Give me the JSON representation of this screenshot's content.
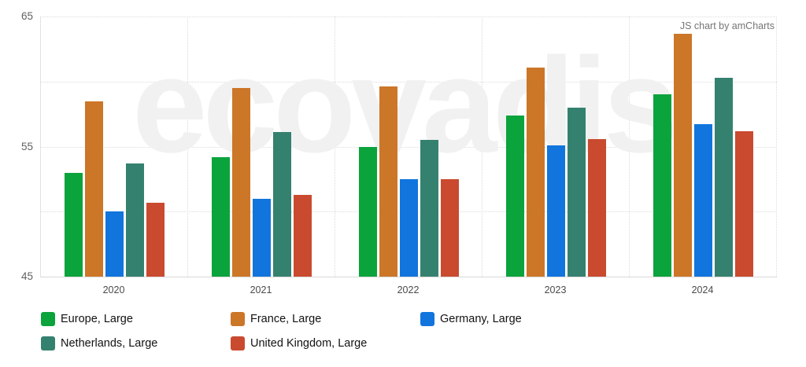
{
  "watermark": "ecovadis",
  "attribution": "JS chart by amCharts",
  "chart_data": {
    "type": "bar",
    "title": "",
    "xlabel": "",
    "ylabel": "",
    "categories": [
      "2020",
      "2021",
      "2022",
      "2023",
      "2024"
    ],
    "series": [
      {
        "name": "Europe, Large",
        "color": "#0ba33c",
        "values": [
          53.0,
          54.2,
          55.0,
          57.4,
          59.0
        ]
      },
      {
        "name": "France, Large",
        "color": "#cc7628",
        "values": [
          58.5,
          59.5,
          59.6,
          61.1,
          63.7
        ]
      },
      {
        "name": "Germany, Large",
        "color": "#1175dd",
        "values": [
          50.0,
          51.0,
          52.5,
          55.1,
          56.7
        ]
      },
      {
        "name": "Netherlands, Large",
        "color": "#35816f",
        "values": [
          53.7,
          56.1,
          55.5,
          58.0,
          60.3
        ]
      },
      {
        "name": "United Kingdom, Large",
        "color": "#ca4a2f",
        "values": [
          50.7,
          51.3,
          52.5,
          55.6,
          56.2
        ]
      }
    ],
    "ylim": [
      45,
      65
    ],
    "ytick_labels": [
      65,
      55,
      45
    ],
    "gridline_step": 5,
    "grid": true,
    "legend_position": "bottom"
  }
}
